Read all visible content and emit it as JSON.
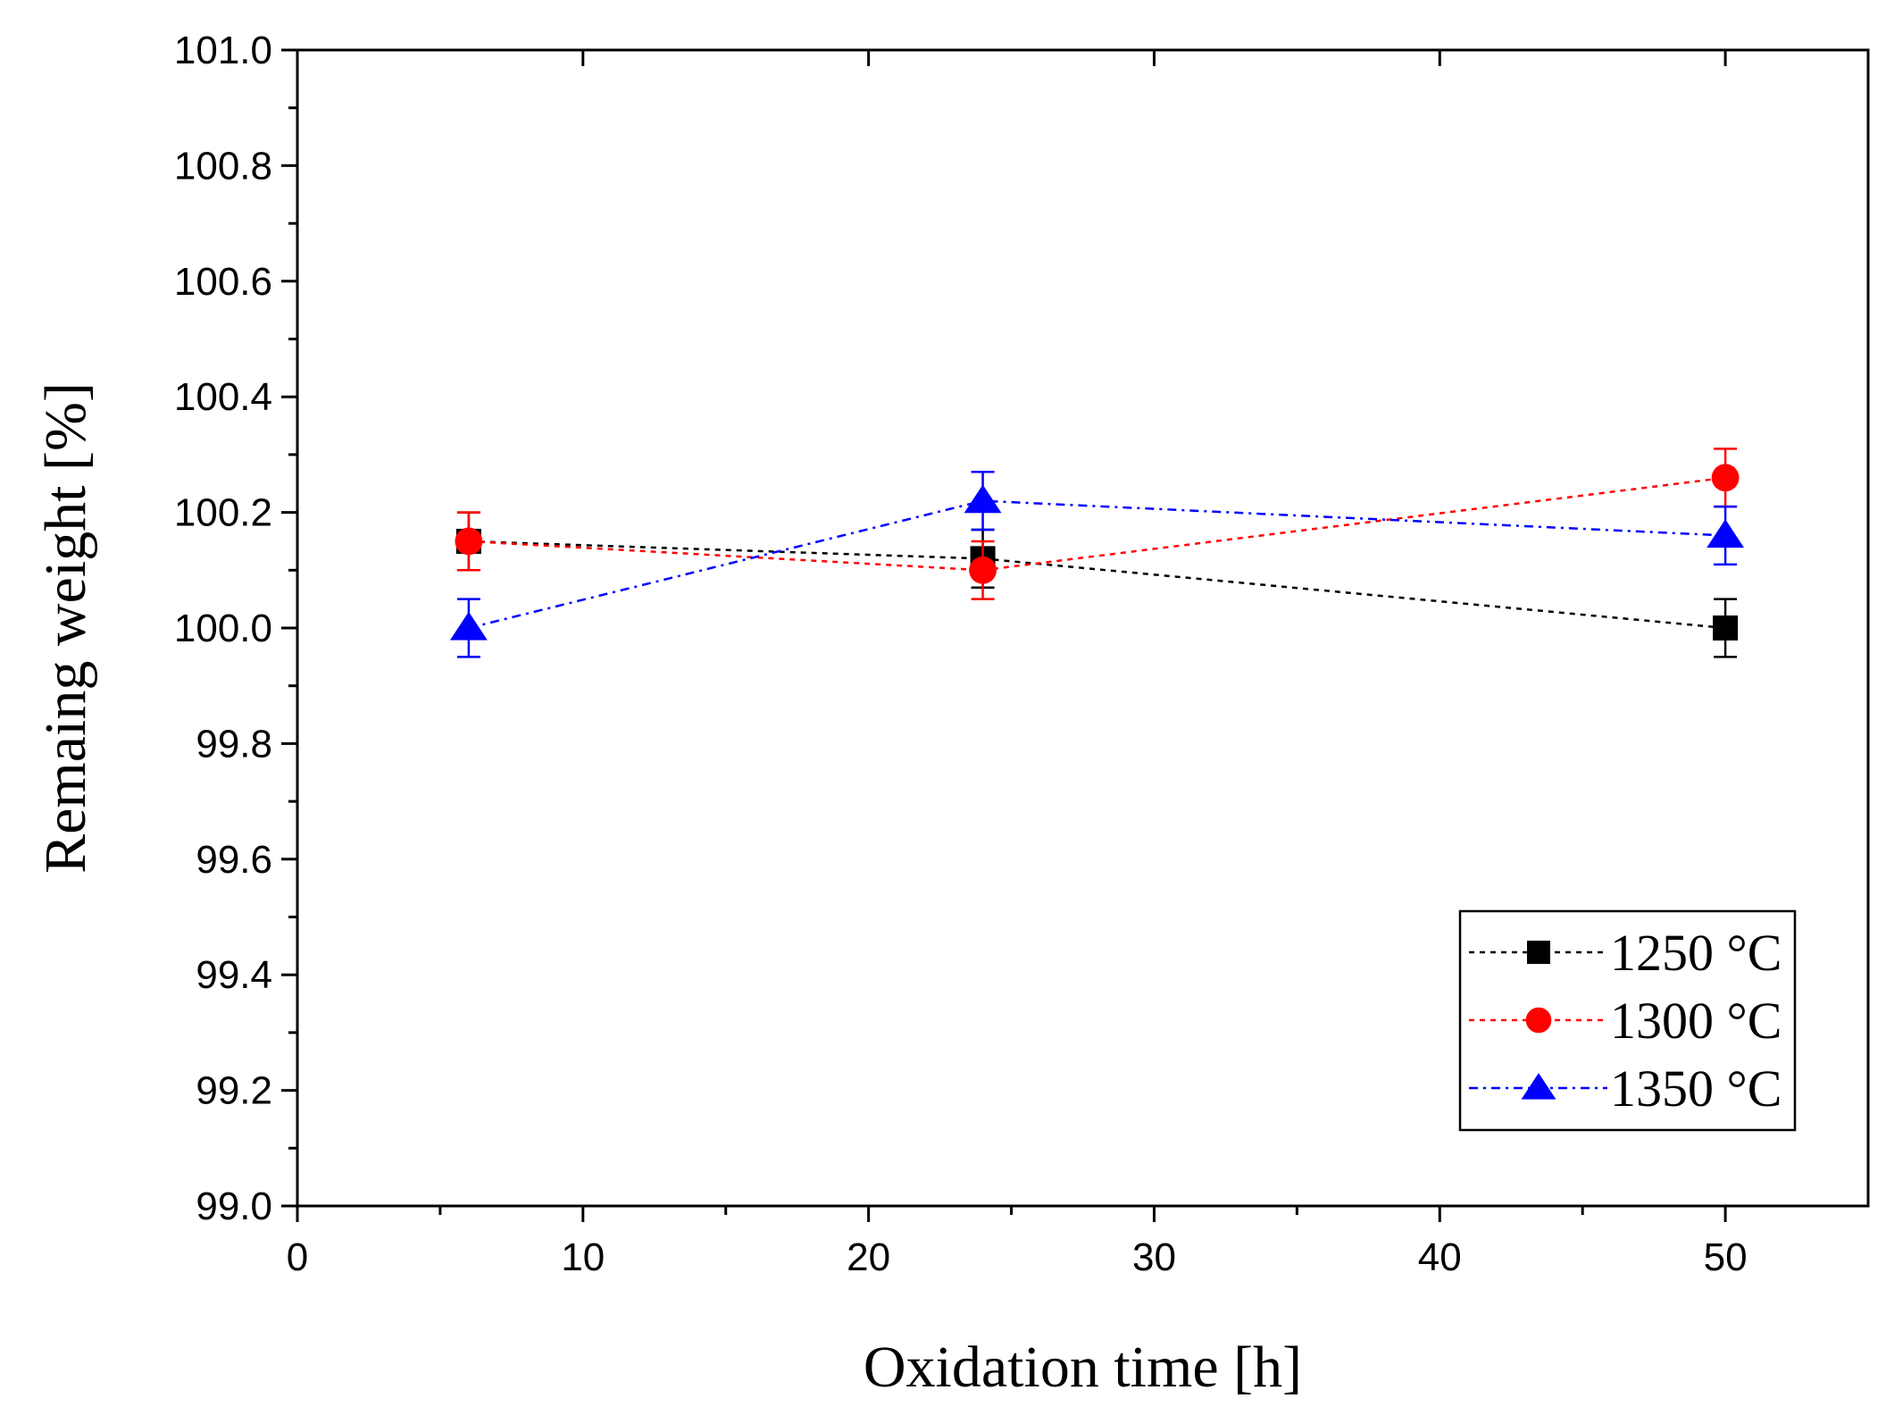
{
  "chart_data": {
    "type": "scatter",
    "title": "",
    "xlabel": "Oxidation time [h]",
    "ylabel": "Remaing weight [%]",
    "xlim": [
      0,
      55
    ],
    "ylim": [
      99.0,
      101.0
    ],
    "x_ticks": [
      0,
      10,
      20,
      30,
      40,
      50
    ],
    "x_tick_labels": [
      "0",
      "10",
      "20",
      "30",
      "40",
      "50"
    ],
    "y_ticks": [
      99.0,
      99.2,
      99.4,
      99.6,
      99.8,
      100.0,
      100.2,
      100.4,
      100.6,
      100.8,
      101.0
    ],
    "y_tick_labels": [
      "99.0",
      "99.2",
      "99.4",
      "99.6",
      "99.8",
      "100.0",
      "100.2",
      "100.4",
      "100.6",
      "100.8",
      "101.0"
    ],
    "grid": false,
    "legend_position": "bottom-right",
    "series": [
      {
        "name": "1250 °C",
        "color": "#000000",
        "marker": "square",
        "line_style": "dotted",
        "x": [
          6,
          24,
          50
        ],
        "y": [
          100.15,
          100.12,
          100.0
        ],
        "error": [
          0.05,
          0.05,
          0.05
        ]
      },
      {
        "name": "1300 °C",
        "color": "#ff0000",
        "marker": "circle",
        "line_style": "dotted",
        "x": [
          6,
          24,
          50
        ],
        "y": [
          100.15,
          100.1,
          100.26
        ],
        "error": [
          0.05,
          0.05,
          0.05
        ]
      },
      {
        "name": "1350 °C",
        "color": "#0000ff",
        "marker": "triangle",
        "line_style": "dash-dot",
        "x": [
          6,
          24,
          50
        ],
        "y": [
          100.0,
          100.22,
          100.16
        ],
        "error": [
          0.05,
          0.05,
          0.05
        ]
      }
    ]
  }
}
